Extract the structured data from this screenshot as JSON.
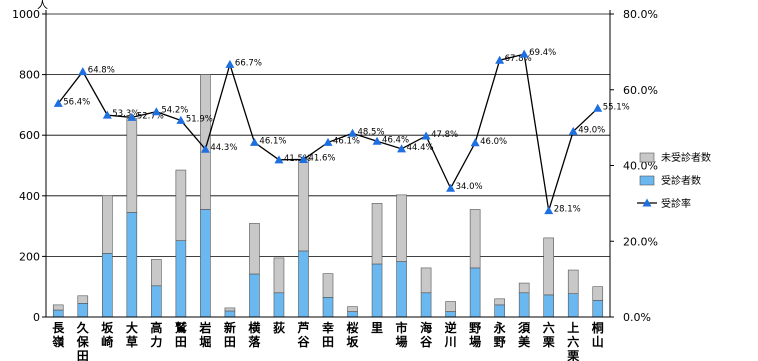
{
  "chart_data": {
    "type": "bar",
    "stacked": true,
    "y_unit": "人",
    "ylim": [
      0,
      1000
    ],
    "yticks": [
      0,
      200,
      400,
      600,
      800,
      1000
    ],
    "y2lim": [
      0,
      80
    ],
    "y2ticks": [
      "0.0%",
      "20.0%",
      "40.0%",
      "60.0%",
      "80.0%"
    ],
    "grid": true,
    "legend_position": "right",
    "categories": [
      "長嶺",
      "久保田",
      "坂崎",
      "大草",
      "高力",
      "鷲田",
      "岩堀",
      "新田",
      "横落",
      "荻",
      "芦谷",
      "幸田",
      "桜坂",
      "里",
      "市場",
      "海谷",
      "逆川",
      "野場",
      "永野",
      "須美",
      "六栗",
      "上六栗",
      "桐山"
    ],
    "series": [
      {
        "name": "受診者数",
        "kind": "bar",
        "color": "#6bb8f0",
        "values": [
          23,
          45,
          210,
          345,
          103,
          252,
          355,
          20,
          142,
          80,
          218,
          65,
          18,
          175,
          183,
          80,
          18,
          162,
          40,
          80,
          73,
          77,
          55
        ]
      },
      {
        "name": "未受診者数",
        "kind": "bar",
        "color": "#c8c8c8",
        "values": [
          17,
          25,
          190,
          310,
          87,
          233,
          445,
          10,
          167,
          115,
          302,
          78,
          16,
          200,
          220,
          82,
          33,
          193,
          20,
          32,
          188,
          78,
          45
        ]
      },
      {
        "name": "受診率",
        "kind": "line",
        "axis": "right",
        "color": "#1e6fe0",
        "values": [
          56.4,
          64.8,
          53.3,
          52.7,
          54.2,
          51.9,
          44.3,
          66.7,
          46.1,
          41.5,
          41.6,
          46.1,
          48.5,
          46.4,
          44.4,
          47.8,
          34.0,
          46.0,
          67.8,
          69.4,
          28.1,
          49.0,
          55.1
        ],
        "labels": [
          "56.4%",
          "64.8%",
          "53.3%",
          "52.7%",
          "54.2%",
          "51.9%",
          "44.3%",
          "66.7%",
          "46.1%",
          "41.5%",
          "41.6%",
          "46.1%",
          "48.5%",
          "46.4%",
          "44.4%",
          "47.8%",
          "34.0%",
          "46.0%",
          "67.8%",
          "69.4%",
          "28.1%",
          "49.0%",
          "55.1%"
        ]
      }
    ]
  }
}
